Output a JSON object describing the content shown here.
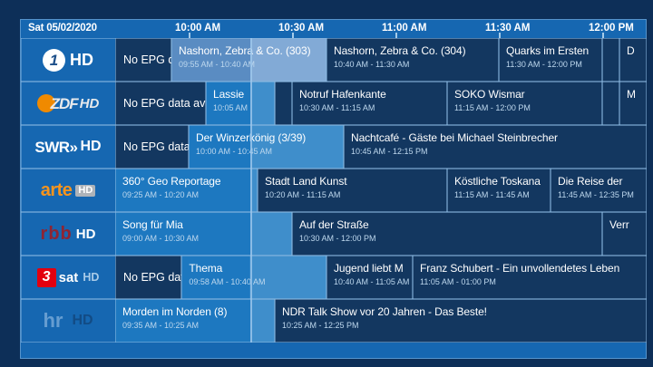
{
  "header": {
    "date": "Sat 05/02/2020",
    "time_labels": [
      {
        "label": "10:00 AM",
        "min": 600
      },
      {
        "label": "10:30 AM",
        "min": 630
      },
      {
        "label": "11:00 AM",
        "min": 660
      },
      {
        "label": "11:30 AM",
        "min": 690
      },
      {
        "label": "12:00 PM",
        "min": 720
      }
    ]
  },
  "timeline": {
    "now_min": 618
  },
  "colors": {
    "outer_bg": "#0d2f58",
    "panel_bg": "#1667b1",
    "block_dark": "#133760",
    "airing_before_now": "#1d78c0",
    "airing_after_now": "#3f8ecb",
    "selected_before_now": "#5a8cc2",
    "selected_after_now": "#82aad6",
    "now_line": "#9fc8ec",
    "time_text": "#bed8ee",
    "arte_orange": "#f7941d",
    "zdf_orange": "#f08a00",
    "rbb_red": "#8e2433",
    "dreisat_red": "#e3000f"
  },
  "channels": [
    {
      "key": "das-erste",
      "logo": {
        "type": "das-erste",
        "number": "1",
        "hd": "HD"
      },
      "programs": [
        {
          "title": "No EPG da",
          "time": "",
          "start": 578,
          "end": 595,
          "state": "noepg"
        },
        {
          "title": "Nashorn, Zebra & Co. (303)",
          "time": "09:55 AM - 10:40 AM",
          "start": 595,
          "end": 640,
          "state": "selected"
        },
        {
          "title": "Nashorn, Zebra & Co. (304)",
          "time": "10:40 AM - 11:30 AM",
          "start": 640,
          "end": 690,
          "state": "default"
        },
        {
          "title": "Quarks im Ersten",
          "time": "11:30 AM - 12:00 PM",
          "start": 690,
          "end": 720,
          "state": "default"
        },
        {
          "title": "",
          "time": "",
          "start": 720,
          "end": 725,
          "state": "default"
        },
        {
          "title": "D",
          "time": "",
          "start": 725,
          "end": 738,
          "state": "default"
        }
      ]
    },
    {
      "key": "zdf",
      "logo": {
        "type": "zdf",
        "text": "ZDF",
        "hd": "HD"
      },
      "programs": [
        {
          "title": "No EPG data avail",
          "time": "",
          "start": 578,
          "end": 605,
          "state": "noepg"
        },
        {
          "title": "Lassie",
          "time": "10:05 AM",
          "start": 605,
          "end": 625,
          "state": "airing"
        },
        {
          "title": "",
          "time": "",
          "start": 625,
          "end": 630,
          "state": "default"
        },
        {
          "title": "Notruf Hafenkante",
          "time": "10:30 AM - 11:15 AM",
          "start": 630,
          "end": 675,
          "state": "default"
        },
        {
          "title": "SOKO Wismar",
          "time": "11:15 AM - 12:00 PM",
          "start": 675,
          "end": 720,
          "state": "default"
        },
        {
          "title": "",
          "time": "",
          "start": 720,
          "end": 725,
          "state": "default"
        },
        {
          "title": "M",
          "time": "",
          "start": 725,
          "end": 738,
          "state": "default"
        }
      ]
    },
    {
      "key": "swr",
      "logo": {
        "type": "swr",
        "text": "SWR»",
        "hd": "HD"
      },
      "programs": [
        {
          "title": "No EPG data a",
          "time": "",
          "start": 578,
          "end": 600,
          "state": "noepg"
        },
        {
          "title": "Der Winzerkönig (3/39)",
          "time": "10:00 AM - 10:45 AM",
          "start": 600,
          "end": 645,
          "state": "airing"
        },
        {
          "title": "Nachtcafé - Gäste bei Michael Steinbrecher",
          "time": "10:45 AM - 12:15 PM",
          "start": 645,
          "end": 735,
          "state": "default"
        }
      ]
    },
    {
      "key": "arte",
      "logo": {
        "type": "arte",
        "text": "arte",
        "hd": "HD"
      },
      "programs": [
        {
          "title": "360° Geo Reportage",
          "time": "09:25 AM - 10:20 AM",
          "start": 565,
          "end": 620,
          "state": "airing"
        },
        {
          "title": "Stadt Land Kunst",
          "time": "10:20 AM - 11:15 AM",
          "start": 620,
          "end": 675,
          "state": "default"
        },
        {
          "title": "Köstliche Toskana",
          "time": "11:15 AM - 11:45 AM",
          "start": 675,
          "end": 705,
          "state": "default"
        },
        {
          "title": "Die Reise der",
          "time": "11:45 AM - 12:35 PM",
          "start": 705,
          "end": 755,
          "state": "default"
        }
      ]
    },
    {
      "key": "rbb",
      "logo": {
        "type": "rbb",
        "text": "rbb",
        "hd": "HD"
      },
      "programs": [
        {
          "title": "Song für Mia",
          "time": "09:00 AM - 10:30 AM",
          "start": 540,
          "end": 630,
          "state": "airing"
        },
        {
          "title": "Auf der Straße",
          "time": "10:30 AM - 12:00 PM",
          "start": 630,
          "end": 720,
          "state": "default"
        },
        {
          "title": "Verr",
          "time": "",
          "start": 720,
          "end": 740,
          "state": "default"
        }
      ]
    },
    {
      "key": "3sat",
      "logo": {
        "type": "3sat",
        "number": "3",
        "text": "sat",
        "hd": "HD"
      },
      "programs": [
        {
          "title": "No EPG data",
          "time": "",
          "start": 578,
          "end": 598,
          "state": "noepg"
        },
        {
          "title": "Thema",
          "time": "09:58 AM - 10:40 AM",
          "start": 598,
          "end": 640,
          "state": "airing"
        },
        {
          "title": "Jugend liebt M",
          "time": "10:40 AM - 11:05 AM",
          "start": 640,
          "end": 665,
          "state": "default"
        },
        {
          "title": "Franz Schubert - Ein unvollendetes Leben",
          "time": "11:05 AM - 01:00 PM",
          "start": 665,
          "end": 780,
          "state": "default"
        }
      ]
    },
    {
      "key": "hr",
      "logo": {
        "type": "hr",
        "text": "hr",
        "hd": "HD"
      },
      "programs": [
        {
          "title": "Morden im Norden (8)",
          "time": "09:35 AM - 10:25 AM",
          "start": 575,
          "end": 625,
          "state": "airing"
        },
        {
          "title": "NDR Talk Show vor 20 Jahren - Das Beste!",
          "time": "10:25 AM - 12:25 PM",
          "start": 625,
          "end": 745,
          "state": "default"
        }
      ]
    }
  ]
}
